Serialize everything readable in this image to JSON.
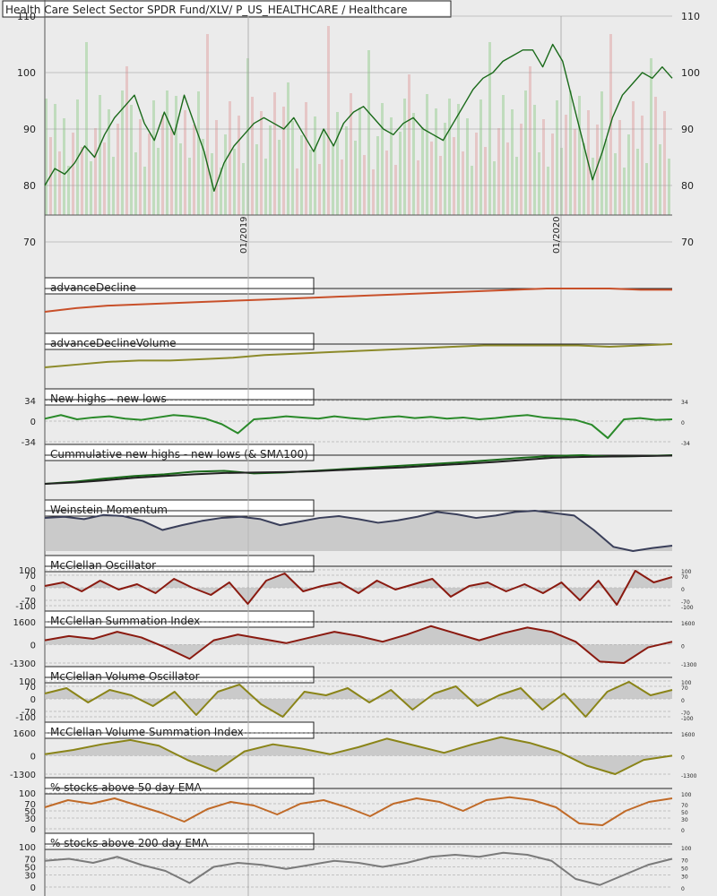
{
  "chart_data": [
    {
      "id": "price",
      "type": "line",
      "title": "Health Care Select Sector SPDR Fund/XLV/ P_US_HEALTHCARE / Healthcare",
      "description_series": [
        "XLV price candles",
        "moving averages",
        "volume bars"
      ],
      "left_ticks": [
        "110",
        "100",
        "90",
        "80",
        "70"
      ],
      "right_ticks": [
        "110",
        "100",
        "90",
        "80",
        "70"
      ],
      "tick_values": [
        110,
        100,
        90,
        80,
        70
      ],
      "x_ticks": [
        "01/2019",
        "01/2020"
      ],
      "ylim": [
        70,
        110
      ],
      "y_values": [
        80,
        83,
        82,
        84,
        87,
        85,
        89,
        92,
        94,
        96,
        91,
        88,
        93,
        89,
        96,
        91,
        86,
        79,
        84,
        87,
        89,
        91,
        92,
        91,
        90,
        92,
        89,
        86,
        90,
        87,
        91,
        93,
        94,
        92,
        90,
        89,
        91,
        92,
        90,
        89,
        88,
        91,
        94,
        97,
        99,
        100,
        102,
        103,
        104,
        104,
        101,
        105,
        102,
        95,
        88,
        81,
        86,
        92,
        96,
        98,
        100,
        99,
        101,
        99
      ]
    },
    {
      "id": "advance-decline",
      "type": "line",
      "title": "advanceDecline",
      "color": "#c8502a",
      "y_values": [
        0,
        3,
        5,
        6,
        7,
        8,
        9,
        10,
        11,
        12,
        13,
        14,
        15,
        16,
        17,
        18,
        19,
        19,
        19,
        18,
        18
      ]
    },
    {
      "id": "advance-decline-volume",
      "type": "line",
      "title": "advanceDeclineVolume",
      "color": "#8c8a2a",
      "y_values": [
        0,
        2,
        4,
        5,
        5,
        6,
        7,
        9,
        10,
        11,
        12,
        13,
        14,
        15,
        16,
        16,
        16,
        16,
        15,
        16,
        17
      ]
    },
    {
      "id": "new-highs-lows",
      "type": "line",
      "title": "New highs - new lows",
      "color": "#2a8a2a",
      "left_ticks": [
        "34",
        "0",
        "-34"
      ],
      "right_ticks": [
        "34",
        "0",
        "-34"
      ],
      "tick_values": [
        34,
        0,
        -34
      ],
      "ylim": [
        -34,
        34
      ],
      "y_values": [
        4,
        10,
        3,
        6,
        8,
        4,
        2,
        6,
        10,
        8,
        4,
        -5,
        -20,
        3,
        5,
        8,
        6,
        4,
        8,
        5,
        3,
        6,
        8,
        5,
        7,
        4,
        6,
        3,
        5,
        8,
        10,
        6,
        4,
        2,
        -6,
        -28,
        3,
        5,
        2,
        3
      ]
    },
    {
      "id": "cumulative-new-highs-lows",
      "type": "line",
      "title": "Cummulative new highs - new lows (& SMA100)",
      "series": [
        {
          "y_values": [
            0,
            5,
            12,
            18,
            22,
            28,
            30,
            24,
            26,
            30,
            34,
            38,
            42,
            46,
            50,
            55,
            60,
            64,
            66,
            63,
            64,
            66
          ],
          "color": "#1a6a1a"
        },
        {
          "y_values": [
            0,
            3,
            8,
            14,
            18,
            22,
            25,
            26,
            27,
            29,
            32,
            35,
            38,
            42,
            46,
            50,
            55,
            60,
            62,
            63,
            64,
            65
          ],
          "color": "#222222"
        }
      ]
    },
    {
      "id": "weinstein-momentum",
      "type": "area",
      "title": "Weinstein Momentum",
      "color": "#3a3f5a",
      "y_values": [
        60,
        62,
        58,
        65,
        63,
        55,
        40,
        48,
        55,
        60,
        62,
        58,
        48,
        54,
        60,
        63,
        58,
        52,
        56,
        62,
        70,
        66,
        60,
        64,
        70,
        72,
        68,
        64,
        40,
        12,
        5,
        10,
        14
      ]
    },
    {
      "id": "mcclellan-oscillator",
      "type": "area",
      "title": "McClellan Oscillator",
      "color": "#8a1a10",
      "left_ticks": [
        "100",
        "70",
        "0",
        "-70",
        "-100"
      ],
      "right_ticks": [
        "100",
        "70",
        "0",
        "-70",
        "-100"
      ],
      "tick_values": [
        100,
        70,
        0,
        -70,
        -100
      ],
      "ylim": [
        -100,
        100
      ],
      "y_values": [
        10,
        30,
        -20,
        40,
        -10,
        20,
        -30,
        50,
        0,
        -40,
        30,
        -90,
        40,
        80,
        -20,
        10,
        30,
        -30,
        40,
        -10,
        20,
        50,
        -50,
        10,
        30,
        -20,
        20,
        -30,
        30,
        -70,
        40,
        -95,
        95,
        30,
        60
      ]
    },
    {
      "id": "mcclellan-summation",
      "type": "area",
      "title": "McClellan Summation Index",
      "color": "#8a1a10",
      "left_ticks": [
        "1600",
        "0",
        "-1300"
      ],
      "right_ticks": [
        "1600",
        "0",
        "-1300"
      ],
      "tick_values": [
        1600,
        0,
        -1300
      ],
      "ylim": [
        -1300,
        1600
      ],
      "y_values": [
        300,
        600,
        400,
        900,
        500,
        -200,
        -1000,
        300,
        700,
        400,
        100,
        500,
        900,
        600,
        200,
        700,
        1300,
        800,
        300,
        800,
        1200,
        900,
        200,
        -1200,
        -1300,
        -200,
        200
      ]
    },
    {
      "id": "mcclellan-volume-oscillator",
      "type": "area",
      "title": "McClellan Volume Oscillator",
      "color": "#8a8418",
      "left_ticks": [
        "100",
        "70",
        "0",
        "-70",
        "-100"
      ],
      "right_ticks": [
        "100",
        "70",
        "0",
        "-70",
        "-100"
      ],
      "tick_values": [
        100,
        70,
        0,
        -70,
        -100
      ],
      "ylim": [
        -100,
        100
      ],
      "y_values": [
        30,
        60,
        -20,
        50,
        20,
        -40,
        40,
        -90,
        40,
        80,
        -30,
        -100,
        40,
        20,
        60,
        -20,
        50,
        -60,
        30,
        70,
        -40,
        20,
        60,
        -60,
        30,
        -100,
        40,
        95,
        20,
        50
      ]
    },
    {
      "id": "mcclellan-volume-summation",
      "type": "area",
      "title": "McClellan Volume Summation Index",
      "color": "#8a8418",
      "left_ticks": [
        "1600",
        "0",
        "-1300"
      ],
      "right_ticks": [
        "1600",
        "0",
        "-1300"
      ],
      "tick_values": [
        1600,
        0,
        -1300
      ],
      "ylim": [
        -1300,
        1600
      ],
      "y_values": [
        100,
        400,
        800,
        1100,
        700,
        -300,
        -1100,
        300,
        800,
        500,
        100,
        600,
        1200,
        700,
        200,
        800,
        1300,
        900,
        300,
        -700,
        -1300,
        -300,
        0
      ]
    },
    {
      "id": "pct-above-50ema",
      "type": "line",
      "title": "% stocks above 50 day EMA",
      "color": "#c06a28",
      "left_ticks": [
        "100",
        "70",
        "50",
        "30",
        "0"
      ],
      "right_ticks": [
        "100",
        "70",
        "50",
        "30",
        "0"
      ],
      "tick_values": [
        100,
        70,
        50,
        30,
        0
      ],
      "ylim": [
        0,
        100
      ],
      "y_values": [
        60,
        80,
        70,
        85,
        65,
        45,
        20,
        55,
        75,
        65,
        40,
        70,
        80,
        60,
        35,
        70,
        85,
        75,
        50,
        80,
        88,
        80,
        60,
        15,
        10,
        50,
        75,
        85
      ]
    },
    {
      "id": "pct-above-200ema",
      "type": "line",
      "title": "% stocks above 200 day EMA",
      "color": "#7a7a7a",
      "left_ticks": [
        "100",
        "70",
        "50",
        "30",
        "0"
      ],
      "right_ticks": [
        "100",
        "70",
        "50",
        "30",
        "0"
      ],
      "tick_values": [
        100,
        70,
        50,
        30,
        0
      ],
      "ylim": [
        0,
        100
      ],
      "y_values": [
        65,
        70,
        60,
        75,
        55,
        40,
        10,
        50,
        60,
        55,
        45,
        55,
        65,
        60,
        50,
        60,
        75,
        80,
        75,
        85,
        80,
        65,
        20,
        5,
        30,
        55,
        70
      ]
    }
  ]
}
